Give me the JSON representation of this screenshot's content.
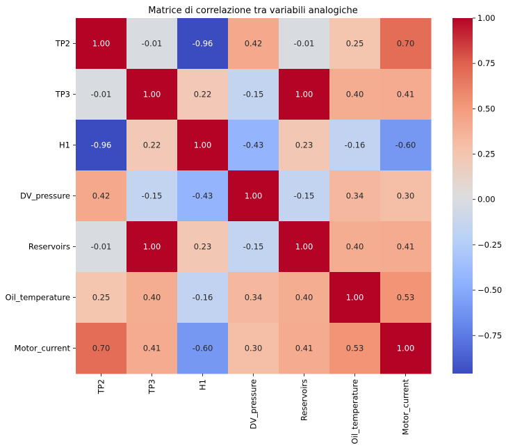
{
  "chart_data": {
    "type": "heatmap",
    "title": "Matrice di correlazione tra variabili analogiche",
    "xlabel": "",
    "ylabel": "",
    "row_labels": [
      "TP2",
      "TP3",
      "H1",
      "DV_pressure",
      "Reservoirs",
      "Oil_temperature",
      "Motor_current"
    ],
    "col_labels": [
      "TP2",
      "TP3",
      "H1",
      "DV_pressure",
      "Reservoirs",
      "Oil_temperature",
      "Motor_current"
    ],
    "values": [
      [
        1.0,
        -0.01,
        -0.96,
        0.42,
        -0.01,
        0.25,
        0.7
      ],
      [
        -0.01,
        1.0,
        0.22,
        -0.15,
        1.0,
        0.4,
        0.41
      ],
      [
        -0.96,
        0.22,
        1.0,
        -0.43,
        0.23,
        -0.16,
        -0.6
      ],
      [
        0.42,
        -0.15,
        -0.43,
        1.0,
        -0.15,
        0.34,
        0.3
      ],
      [
        -0.01,
        1.0,
        0.23,
        -0.15,
        1.0,
        0.4,
        0.41
      ],
      [
        0.25,
        0.4,
        -0.16,
        0.34,
        0.4,
        1.0,
        0.53
      ],
      [
        0.7,
        0.41,
        -0.6,
        0.3,
        0.41,
        0.53,
        1.0
      ]
    ],
    "colormap": "coolwarm",
    "vmin": -0.96,
    "vmax": 1.0,
    "colorbar_ticks": [
      1.0,
      0.75,
      0.5,
      0.25,
      0.0,
      -0.25,
      -0.5,
      -0.75
    ],
    "colorbar_tick_labels": [
      "1.00",
      "0.75",
      "0.50",
      "0.25",
      "0.00",
      "−0.25",
      "−0.50",
      "−0.75"
    ],
    "annotation_format": "2 decimals"
  }
}
